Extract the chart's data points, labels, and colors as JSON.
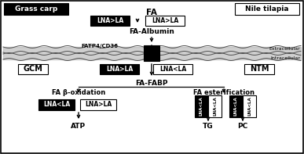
{
  "bg_color": "#ffffff",
  "outer_border_color": "#000000",
  "title_grass_carp": "Grass carp",
  "title_nile_tilapia": "Nile tilapia",
  "label_fa": "FA",
  "label_fa_albumin": "FA-Albumin",
  "label_fatp4": "FATP4/CD36",
  "label_extracellular": "Extracellular",
  "label_intracellular": "Intracellular",
  "label_gcm": "GCM",
  "label_ntm": "NTM",
  "label_fa_fabp": "FA-FABP",
  "label_fa_beta_ox": "FA β-oxidation",
  "label_fa_ester": "FA esterification",
  "label_atp": "ATP",
  "label_tg": "TG",
  "label_pc": "PC",
  "label_lna_gt_la": "LNA>LA",
  "label_lna_lt_la": "LNA<LA",
  "fig_w": 3.87,
  "fig_h": 1.97,
  "dpi": 100
}
